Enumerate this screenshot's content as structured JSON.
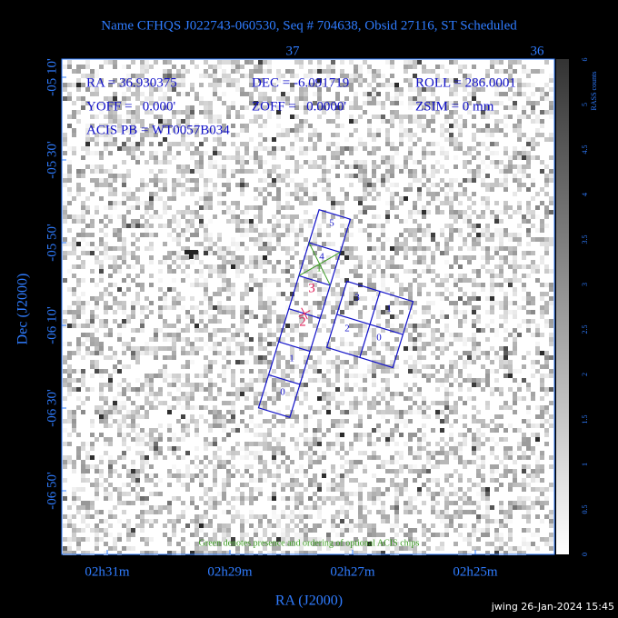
{
  "title": "Name CFHQS J022743-060530, Seq # 704638, Obsid 27116, ST Scheduled",
  "info": {
    "ra": "RA = 36.930375",
    "dec": "DEC = -6.091719",
    "roll": "ROLL = 286.0001",
    "yoff": "YOFF =   0.000'",
    "zoff": "ZOFF =   0.0000'",
    "zsim": "ZSIM = 0 mm",
    "acis_pb": "ACIS PB = WT0057B034"
  },
  "axes": {
    "x_title": "RA (J2000)",
    "y_title": "Dec (J2000)",
    "x_ticks": [
      "02h31m",
      "02h29m",
      "02h27m",
      "02h25m"
    ],
    "y_ticks": [
      "-05 10'",
      "-05 30'",
      "-05 50'",
      "-06 10'",
      "-06 30'",
      "-06 50'"
    ],
    "top_ticks": [
      "37",
      "36"
    ]
  },
  "colorbar": {
    "label": "RASS counts",
    "ticks": [
      "0",
      "0.5",
      "1",
      "1.5",
      "2",
      "2.5",
      "3",
      "3.5",
      "4",
      "4.5",
      "5",
      "6"
    ]
  },
  "chips": {
    "acis_s": [
      "5",
      "4",
      "3",
      "2",
      "1",
      "0"
    ],
    "acis_i": [
      "3",
      "1",
      "2",
      "0"
    ],
    "optional": "1"
  },
  "note": "Green denotes presence and ordering of optional ACIS chips",
  "footer": "jwing 26-Jan-2024 15:45"
}
